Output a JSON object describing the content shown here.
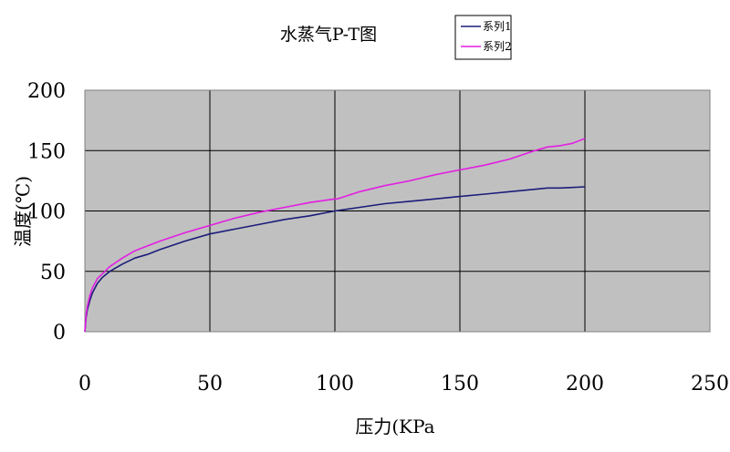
{
  "chart_data": {
    "type": "line",
    "title": "水蒸气P-T图",
    "xlabel": "压力(KPa",
    "ylabel": "温度(℃)",
    "xlim": [
      0,
      250
    ],
    "ylim": [
      0,
      200
    ],
    "x_ticks": [
      "0",
      "50",
      "100",
      "150",
      "200",
      "250"
    ],
    "y_ticks": [
      "0",
      "50",
      "100",
      "150",
      "200"
    ],
    "grid": true,
    "legend_position": "top-right",
    "colors": {
      "plot_background": "#c0c0c0",
      "gridline": "#000000",
      "series1": "#1c1c7a",
      "series2": "#e21ee2"
    },
    "series": [
      {
        "name": "系列1",
        "x": [
          0,
          0.5,
          1,
          2,
          3,
          5,
          7,
          10,
          15,
          20,
          25,
          30,
          40,
          50,
          60,
          70,
          80,
          90,
          100,
          110,
          120,
          130,
          140,
          150,
          160,
          170,
          180,
          185,
          190,
          195,
          200
        ],
        "y": [
          0,
          12,
          18,
          26,
          32,
          40,
          45,
          50,
          56,
          61,
          64,
          68,
          75,
          81,
          85,
          89,
          93,
          96,
          100,
          103,
          106,
          108,
          110,
          112,
          114,
          116,
          118,
          119,
          119,
          119.5,
          120
        ]
      },
      {
        "name": "系列2",
        "x": [
          0,
          0.5,
          1,
          2,
          3,
          5,
          7,
          10,
          15,
          20,
          25,
          30,
          40,
          50,
          60,
          70,
          80,
          90,
          100,
          101,
          110,
          120,
          130,
          140,
          150,
          160,
          170,
          180,
          185,
          190,
          195,
          200
        ],
        "y": [
          0,
          14,
          21,
          30,
          36,
          44,
          48,
          54,
          61,
          67,
          71,
          75,
          82,
          88,
          94,
          99,
          103,
          107,
          110,
          110,
          116,
          121,
          125,
          130,
          134,
          138,
          143,
          150,
          153,
          154,
          156,
          160
        ]
      }
    ]
  }
}
